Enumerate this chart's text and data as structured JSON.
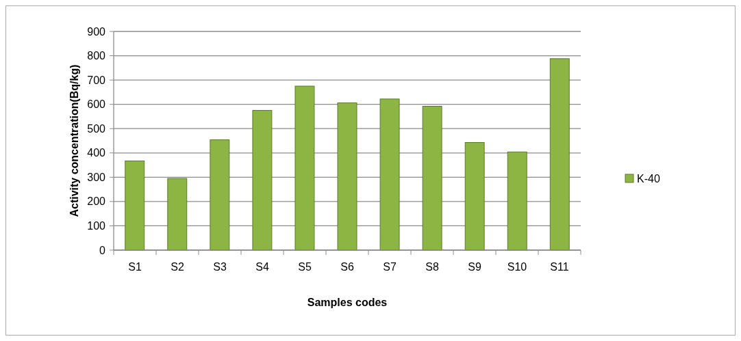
{
  "chart_data": {
    "type": "bar",
    "xlabel": "Samples codes",
    "ylabel": "Activity concentration(Bq/kg)",
    "categories": [
      "S1",
      "S2",
      "S3",
      "S4",
      "S5",
      "S6",
      "S7",
      "S8",
      "S9",
      "S10",
      "S11"
    ],
    "series": [
      {
        "name": "K-40",
        "color": "#8db543",
        "values": [
          367,
          295,
          454,
          575,
          675,
          606,
          622,
          592,
          443,
          404,
          788
        ]
      }
    ],
    "ylim": [
      0,
      900
    ],
    "yticks": [
      0,
      100,
      200,
      300,
      400,
      500,
      600,
      700,
      800,
      900
    ],
    "grid": "y",
    "legend": "right"
  }
}
